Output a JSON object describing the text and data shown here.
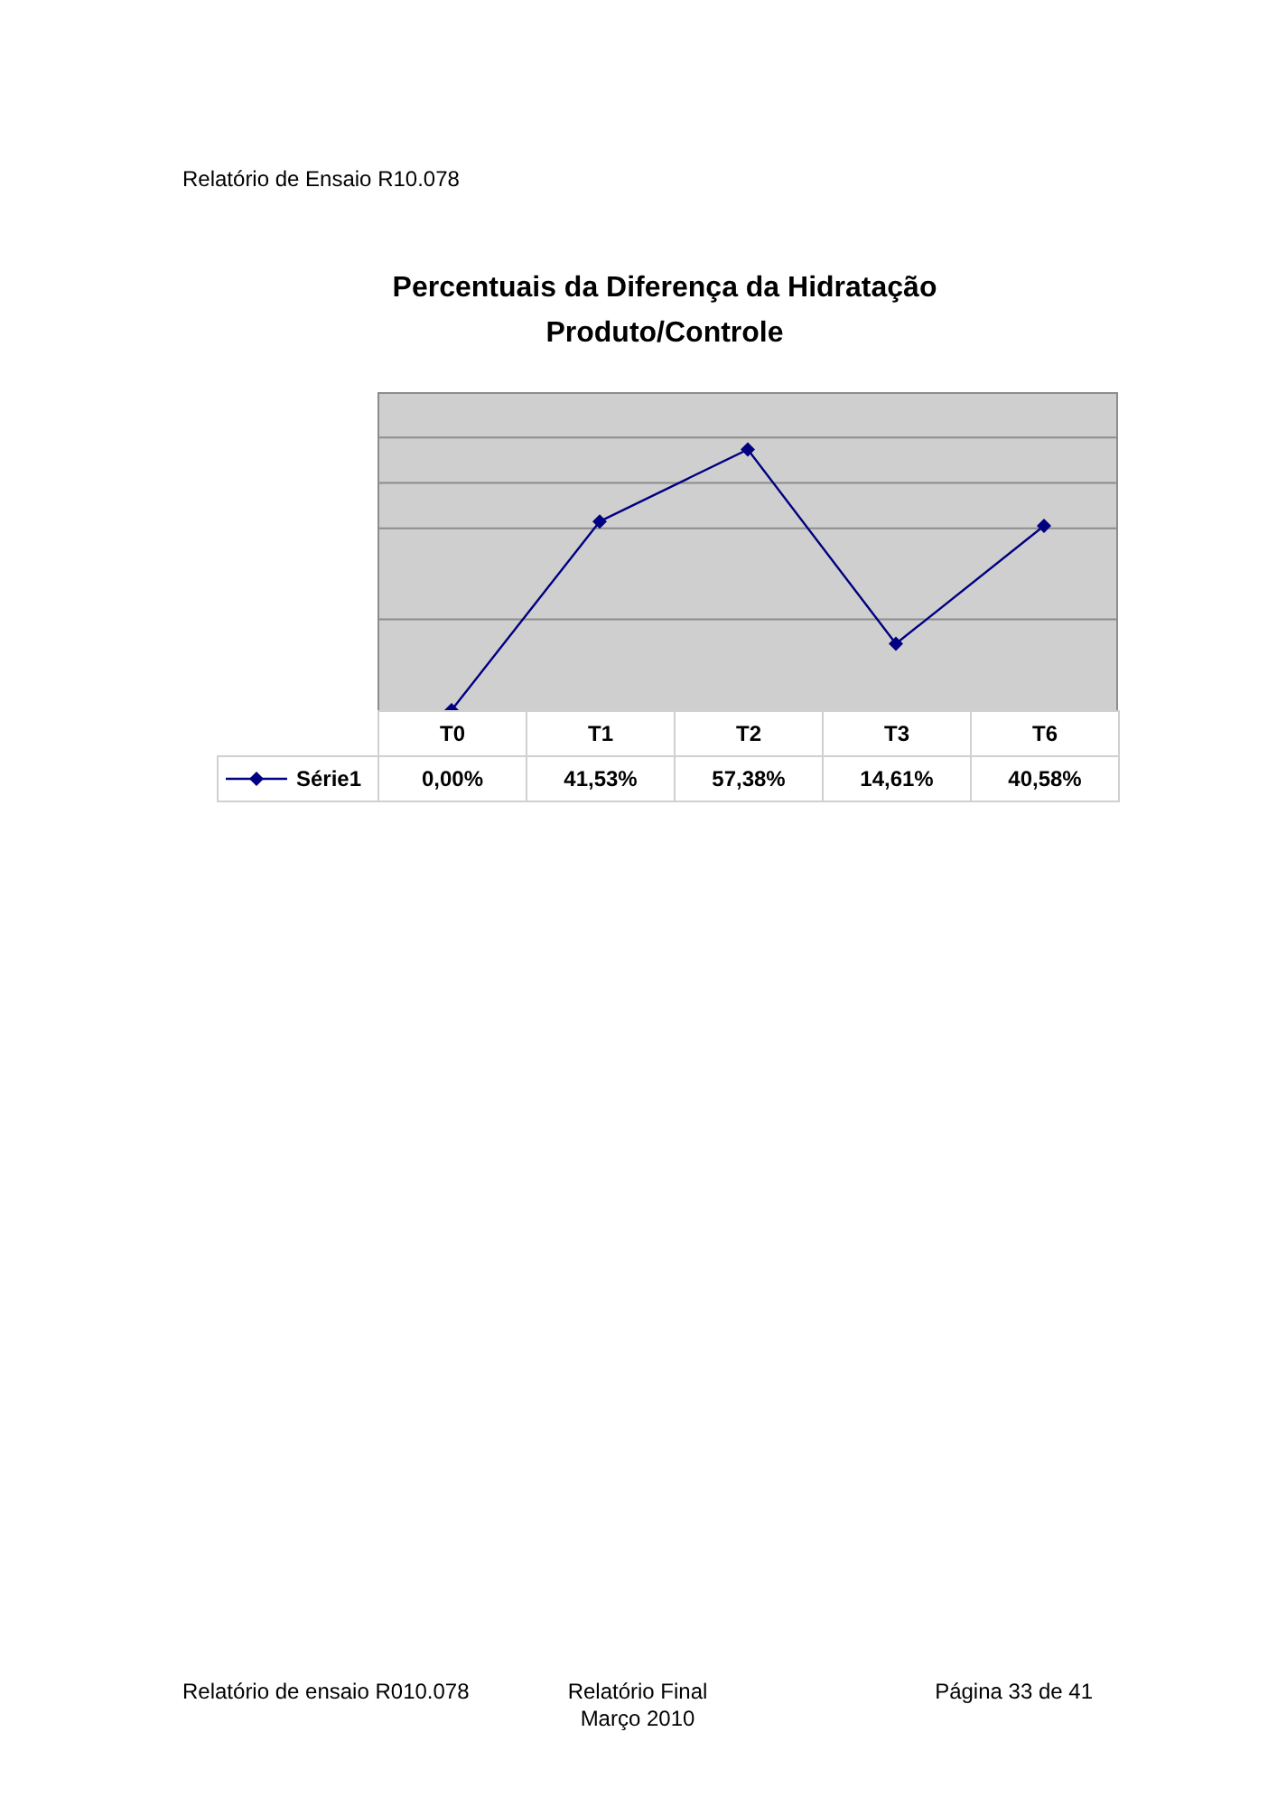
{
  "chart_data": {
    "type": "line",
    "title": "Percentuais da Diferença da Hidratação\nProduto/Controle",
    "categories": [
      "T0",
      "T1",
      "T2",
      "T3",
      "T6"
    ],
    "series": [
      {
        "name": "Série1",
        "color": "#000080",
        "values": [
          0,
          41.53,
          57.38,
          14.61,
          40.58
        ],
        "value_labels": [
          "0,00%",
          "41,53%",
          "57,38%",
          "14,61%",
          "40,58%"
        ]
      }
    ],
    "ylim": [
      0,
      70
    ],
    "yticks": [
      {
        "value": 20,
        "label": null
      },
      {
        "value": 40,
        "label": null
      },
      {
        "value": 50,
        "label": null
      },
      {
        "value": 60,
        "label": null
      }
    ],
    "grid": "y",
    "tick_labels": "x",
    "marker": "diamond",
    "line_style": "solid",
    "legend": "bottom left",
    "annotations": [
      "Relatório de Ensaio R10.078",
      "Relatório de ensaio R010.078",
      "Relatório Final\nMarço 2010",
      "Página 33 de 41"
    ]
  }
}
